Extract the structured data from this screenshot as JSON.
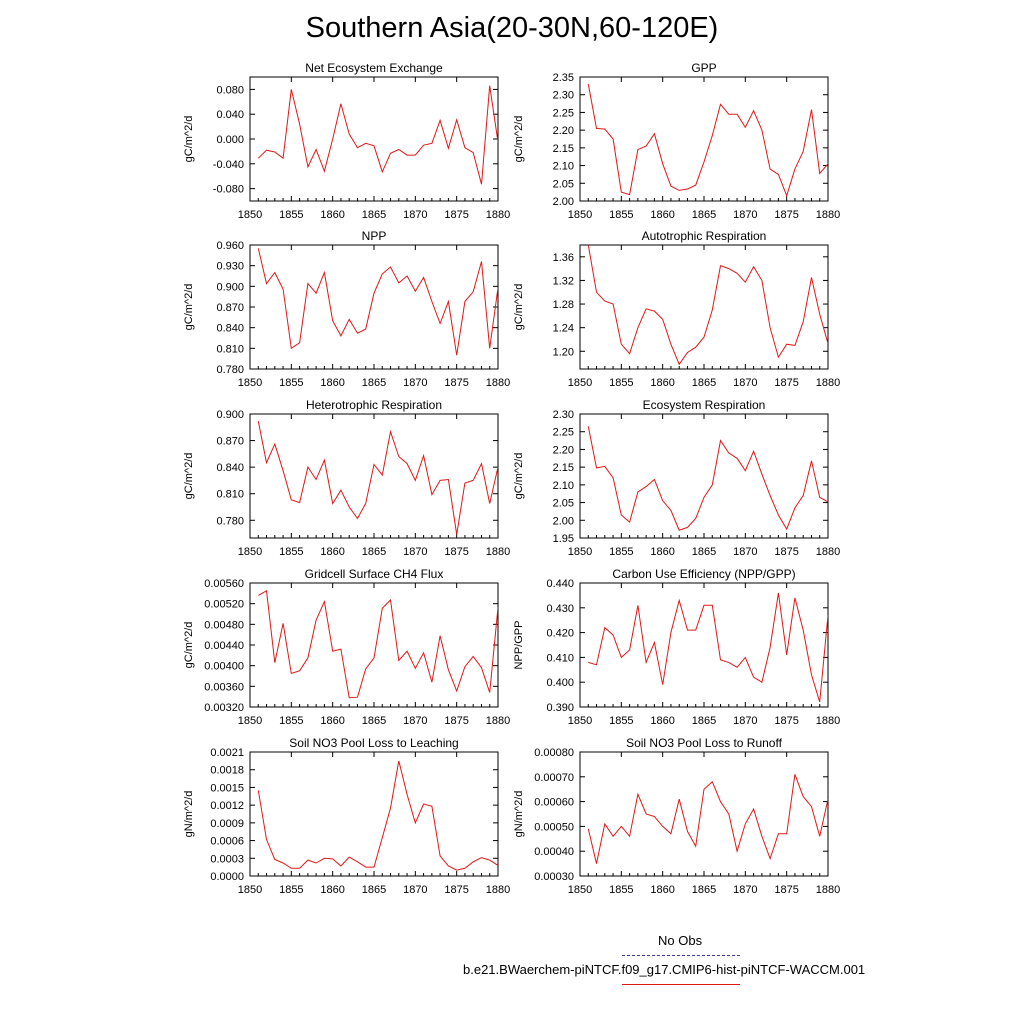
{
  "title": "Southern Asia(20-30N,60-120E)",
  "legend": {
    "obs_label": "No Obs",
    "model_label": "b.e21.BWaerchem-piNTCF.f09_g17.CMIP6-hist-piNTCF-WACCM.001",
    "obs_color": "#3a3aa8",
    "model_color": "#e01818"
  },
  "chart_data": [
    {
      "type": "line",
      "title": "Net Ecosystem Exchange",
      "ylabel": "gC/m^2/d",
      "xlim": [
        1850,
        1880
      ],
      "xticks": [
        "1850",
        "1855",
        "1860",
        "1865",
        "1870",
        "1875",
        "1880"
      ],
      "ylim": [
        -0.1,
        0.1
      ],
      "yticks": [
        "-0.080",
        "-0.040",
        "0.000",
        "0.040",
        "0.080"
      ],
      "ytick_values": [
        -0.08,
        -0.04,
        0.0,
        0.04,
        0.08
      ],
      "x": [
        1851,
        1852,
        1853,
        1854,
        1855,
        1856,
        1857,
        1858,
        1859,
        1860,
        1861,
        1862,
        1863,
        1864,
        1865,
        1866,
        1867,
        1868,
        1869,
        1870,
        1871,
        1872,
        1873,
        1874,
        1875,
        1876,
        1877,
        1878,
        1879,
        1880
      ],
      "series": [
        {
          "values": [
            -0.031,
            -0.018,
            -0.021,
            -0.031,
            0.08,
            0.024,
            -0.045,
            -0.017,
            -0.052,
            0.0,
            0.057,
            0.008,
            -0.014,
            -0.007,
            -0.011,
            -0.053,
            -0.023,
            -0.017,
            -0.026,
            -0.026,
            -0.01,
            -0.007,
            0.03,
            -0.015,
            0.031,
            -0.014,
            -0.022,
            -0.073,
            0.086,
            -0.005
          ],
          "color": "#e01818"
        }
      ]
    },
    {
      "type": "line",
      "title": "GPP",
      "ylabel": "gC/m^2/d",
      "xlim": [
        1850,
        1880
      ],
      "xticks": [
        "1850",
        "1855",
        "1860",
        "1865",
        "1870",
        "1875",
        "1880"
      ],
      "ylim": [
        2.0,
        2.35
      ],
      "yticks": [
        "2.00",
        "2.05",
        "2.10",
        "2.15",
        "2.20",
        "2.25",
        "2.30",
        "2.35"
      ],
      "ytick_values": [
        2.0,
        2.05,
        2.1,
        2.15,
        2.2,
        2.25,
        2.3,
        2.35
      ],
      "x": [
        1851,
        1852,
        1853,
        1854,
        1855,
        1856,
        1857,
        1858,
        1859,
        1860,
        1861,
        1862,
        1863,
        1864,
        1865,
        1866,
        1867,
        1868,
        1869,
        1870,
        1871,
        1872,
        1873,
        1874,
        1875,
        1876,
        1877,
        1878,
        1879,
        1880
      ],
      "series": [
        {
          "values": [
            2.33,
            2.205,
            2.203,
            2.175,
            2.025,
            2.018,
            2.145,
            2.155,
            2.19,
            2.105,
            2.042,
            2.03,
            2.034,
            2.045,
            2.11,
            2.185,
            2.273,
            2.245,
            2.245,
            2.208,
            2.255,
            2.2,
            2.09,
            2.075,
            2.015,
            2.09,
            2.14,
            2.258,
            2.078,
            2.105
          ],
          "color": "#e01818"
        }
      ]
    },
    {
      "type": "line",
      "title": "NPP",
      "ylabel": "gC/m^2/d",
      "xlim": [
        1850,
        1880
      ],
      "xticks": [
        "1850",
        "1855",
        "1860",
        "1865",
        "1870",
        "1875",
        "1880"
      ],
      "ylim": [
        0.78,
        0.96
      ],
      "yticks": [
        "0.780",
        "0.810",
        "0.840",
        "0.870",
        "0.900",
        "0.930",
        "0.960"
      ],
      "ytick_values": [
        0.78,
        0.81,
        0.84,
        0.87,
        0.9,
        0.93,
        0.96
      ],
      "x": [
        1851,
        1852,
        1853,
        1854,
        1855,
        1856,
        1857,
        1858,
        1859,
        1860,
        1861,
        1862,
        1863,
        1864,
        1865,
        1866,
        1867,
        1868,
        1869,
        1870,
        1871,
        1872,
        1873,
        1874,
        1875,
        1876,
        1877,
        1878,
        1879,
        1880
      ],
      "series": [
        {
          "values": [
            0.955,
            0.904,
            0.92,
            0.896,
            0.81,
            0.818,
            0.904,
            0.89,
            0.92,
            0.85,
            0.828,
            0.852,
            0.832,
            0.838,
            0.89,
            0.918,
            0.928,
            0.905,
            0.915,
            0.893,
            0.913,
            0.878,
            0.846,
            0.878,
            0.8,
            0.878,
            0.892,
            0.936,
            0.81,
            0.898
          ],
          "color": "#e01818"
        }
      ]
    },
    {
      "type": "line",
      "title": "Autotrophic Respiration",
      "ylabel": "gC/m^2/d",
      "xlim": [
        1850,
        1880
      ],
      "xticks": [
        "1850",
        "1855",
        "1860",
        "1865",
        "1870",
        "1875",
        "1880"
      ],
      "ylim": [
        1.17,
        1.38
      ],
      "yticks": [
        "1.20",
        "1.24",
        "1.28",
        "1.32",
        "1.36"
      ],
      "ytick_values": [
        1.2,
        1.24,
        1.28,
        1.32,
        1.36
      ],
      "x": [
        1851,
        1852,
        1853,
        1854,
        1855,
        1856,
        1857,
        1858,
        1859,
        1860,
        1861,
        1862,
        1863,
        1864,
        1865,
        1866,
        1867,
        1868,
        1869,
        1870,
        1871,
        1872,
        1873,
        1874,
        1875,
        1876,
        1877,
        1878,
        1879,
        1880
      ],
      "series": [
        {
          "values": [
            1.38,
            1.3,
            1.285,
            1.28,
            1.212,
            1.196,
            1.24,
            1.272,
            1.268,
            1.254,
            1.212,
            1.178,
            1.198,
            1.207,
            1.224,
            1.27,
            1.345,
            1.34,
            1.332,
            1.317,
            1.343,
            1.32,
            1.24,
            1.19,
            1.212,
            1.21,
            1.25,
            1.325,
            1.263,
            1.213
          ],
          "color": "#e01818"
        }
      ]
    },
    {
      "type": "line",
      "title": "Heterotrophic Respiration",
      "ylabel": "gC/m^2/d",
      "xlim": [
        1850,
        1880
      ],
      "xticks": [
        "1850",
        "1855",
        "1860",
        "1865",
        "1870",
        "1875",
        "1880"
      ],
      "ylim": [
        0.76,
        0.9
      ],
      "yticks": [
        "0.780",
        "0.810",
        "0.840",
        "0.870",
        "0.900"
      ],
      "ytick_values": [
        0.78,
        0.81,
        0.84,
        0.87,
        0.9
      ],
      "x": [
        1851,
        1852,
        1853,
        1854,
        1855,
        1856,
        1857,
        1858,
        1859,
        1860,
        1861,
        1862,
        1863,
        1864,
        1865,
        1866,
        1867,
        1868,
        1869,
        1870,
        1871,
        1872,
        1873,
        1874,
        1875,
        1876,
        1877,
        1878,
        1879,
        1880
      ],
      "series": [
        {
          "values": [
            0.892,
            0.845,
            0.866,
            0.836,
            0.803,
            0.8,
            0.84,
            0.826,
            0.848,
            0.799,
            0.814,
            0.795,
            0.782,
            0.799,
            0.843,
            0.831,
            0.88,
            0.852,
            0.844,
            0.825,
            0.853,
            0.809,
            0.825,
            0.826,
            0.764,
            0.822,
            0.825,
            0.844,
            0.799,
            0.84
          ],
          "color": "#e01818"
        }
      ]
    },
    {
      "type": "line",
      "title": "Ecosystem Respiration",
      "ylabel": "gC/m^2/d",
      "xlim": [
        1850,
        1880
      ],
      "xticks": [
        "1850",
        "1855",
        "1860",
        "1865",
        "1870",
        "1875",
        "1880"
      ],
      "ylim": [
        1.95,
        2.3
      ],
      "yticks": [
        "1.95",
        "2.00",
        "2.05",
        "2.10",
        "2.15",
        "2.20",
        "2.25",
        "2.30"
      ],
      "ytick_values": [
        1.95,
        2.0,
        2.05,
        2.1,
        2.15,
        2.2,
        2.25,
        2.3
      ],
      "x": [
        1851,
        1852,
        1853,
        1854,
        1855,
        1856,
        1857,
        1858,
        1859,
        1860,
        1861,
        1862,
        1863,
        1864,
        1865,
        1866,
        1867,
        1868,
        1869,
        1870,
        1871,
        1872,
        1873,
        1874,
        1875,
        1876,
        1877,
        1878,
        1879,
        1880
      ],
      "series": [
        {
          "values": [
            2.265,
            2.148,
            2.152,
            2.12,
            2.015,
            1.995,
            2.08,
            2.095,
            2.115,
            2.055,
            2.028,
            1.972,
            1.98,
            2.005,
            2.065,
            2.1,
            2.225,
            2.19,
            2.175,
            2.14,
            2.195,
            2.13,
            2.07,
            2.015,
            1.975,
            2.035,
            2.07,
            2.168,
            2.065,
            2.052
          ],
          "color": "#e01818"
        }
      ]
    },
    {
      "type": "line",
      "title": "Gridcell Surface CH4 Flux",
      "ylabel": "gC/m^2/d",
      "xlim": [
        1850,
        1880
      ],
      "xticks": [
        "1850",
        "1855",
        "1860",
        "1865",
        "1870",
        "1875",
        "1880"
      ],
      "ylim": [
        0.0032,
        0.0056
      ],
      "yticks": [
        "0.00320",
        "0.00360",
        "0.00400",
        "0.00440",
        "0.00480",
        "0.00520",
        "0.00560"
      ],
      "ytick_values": [
        0.0032,
        0.0036,
        0.004,
        0.0044,
        0.0048,
        0.0052,
        0.0056
      ],
      "x": [
        1851,
        1852,
        1853,
        1854,
        1855,
        1856,
        1857,
        1858,
        1859,
        1860,
        1861,
        1862,
        1863,
        1864,
        1865,
        1866,
        1867,
        1868,
        1869,
        1870,
        1871,
        1872,
        1873,
        1874,
        1875,
        1876,
        1877,
        1878,
        1879,
        1880
      ],
      "series": [
        {
          "values": [
            0.00536,
            0.00545,
            0.00406,
            0.00482,
            0.00385,
            0.0039,
            0.00415,
            0.00488,
            0.00524,
            0.00428,
            0.00432,
            0.00338,
            0.00339,
            0.00394,
            0.00415,
            0.00511,
            0.00527,
            0.0041,
            0.00428,
            0.00395,
            0.00425,
            0.00368,
            0.00458,
            0.00392,
            0.00351,
            0.00398,
            0.00418,
            0.00396,
            0.00348,
            0.00513
          ],
          "color": "#e01818"
        }
      ]
    },
    {
      "type": "line",
      "title": "Carbon Use Efficiency (NPP/GPP)",
      "ylabel": "NPP/GPP",
      "xlim": [
        1850,
        1880
      ],
      "xticks": [
        "1850",
        "1855",
        "1860",
        "1865",
        "1870",
        "1875",
        "1880"
      ],
      "ylim": [
        0.39,
        0.44
      ],
      "yticks": [
        "0.390",
        "0.400",
        "0.410",
        "0.420",
        "0.430",
        "0.440"
      ],
      "ytick_values": [
        0.39,
        0.4,
        0.41,
        0.42,
        0.43,
        0.44
      ],
      "x": [
        1851,
        1852,
        1853,
        1854,
        1855,
        1856,
        1857,
        1858,
        1859,
        1860,
        1861,
        1862,
        1863,
        1864,
        1865,
        1866,
        1867,
        1868,
        1869,
        1870,
        1871,
        1872,
        1873,
        1874,
        1875,
        1876,
        1877,
        1878,
        1879,
        1880
      ],
      "series": [
        {
          "values": [
            0.408,
            0.407,
            0.422,
            0.419,
            0.41,
            0.413,
            0.431,
            0.408,
            0.416,
            0.399,
            0.42,
            0.433,
            0.421,
            0.421,
            0.431,
            0.431,
            0.409,
            0.408,
            0.406,
            0.41,
            0.402,
            0.4,
            0.414,
            0.436,
            0.411,
            0.434,
            0.421,
            0.403,
            0.392,
            0.427
          ],
          "color": "#e01818"
        }
      ]
    },
    {
      "type": "line",
      "title": "Soil NO3 Pool Loss to Leaching",
      "ylabel": "gN/m^2/d",
      "xlim": [
        1850,
        1880
      ],
      "xticks": [
        "1850",
        "1855",
        "1860",
        "1865",
        "1870",
        "1875",
        "1880"
      ],
      "ylim": [
        0.0,
        0.0021
      ],
      "yticks": [
        "0.0000",
        "0.0003",
        "0.0006",
        "0.0009",
        "0.0012",
        "0.0015",
        "0.0018",
        "0.0021"
      ],
      "ytick_values": [
        0.0,
        0.0003,
        0.0006,
        0.0009,
        0.0012,
        0.0015,
        0.0018,
        0.0021
      ],
      "x": [
        1851,
        1852,
        1853,
        1854,
        1855,
        1856,
        1857,
        1858,
        1859,
        1860,
        1861,
        1862,
        1863,
        1864,
        1865,
        1866,
        1867,
        1868,
        1869,
        1870,
        1871,
        1872,
        1873,
        1874,
        1875,
        1876,
        1877,
        1878,
        1879,
        1880
      ],
      "series": [
        {
          "values": [
            0.00145,
            0.00062,
            0.00028,
            0.00022,
            0.00013,
            0.00013,
            0.00027,
            0.00022,
            0.0003,
            0.00029,
            0.00017,
            0.00032,
            0.00024,
            0.00015,
            0.00015,
            0.00065,
            0.00115,
            0.00195,
            0.00138,
            0.0009,
            0.00122,
            0.00118,
            0.00034,
            0.00017,
            0.0001,
            0.00013,
            0.00024,
            0.00031,
            0.00027,
            0.00018
          ],
          "color": "#e01818"
        }
      ]
    },
    {
      "type": "line",
      "title": "Soil NO3 Pool Loss to Runoff",
      "ylabel": "gN/m^2/d",
      "xlim": [
        1850,
        1880
      ],
      "xticks": [
        "1850",
        "1855",
        "1860",
        "1865",
        "1870",
        "1875",
        "1880"
      ],
      "ylim": [
        0.0003,
        0.0008
      ],
      "yticks": [
        "0.00030",
        "0.00040",
        "0.00050",
        "0.00060",
        "0.00070",
        "0.00080"
      ],
      "ytick_values": [
        0.0003,
        0.0004,
        0.0005,
        0.0006,
        0.0007,
        0.0008
      ],
      "x": [
        1851,
        1852,
        1853,
        1854,
        1855,
        1856,
        1857,
        1858,
        1859,
        1860,
        1861,
        1862,
        1863,
        1864,
        1865,
        1866,
        1867,
        1868,
        1869,
        1870,
        1871,
        1872,
        1873,
        1874,
        1875,
        1876,
        1877,
        1878,
        1879,
        1880
      ],
      "series": [
        {
          "values": [
            0.00049,
            0.00035,
            0.00051,
            0.00046,
            0.0005,
            0.00046,
            0.00063,
            0.00055,
            0.00054,
            0.0005,
            0.00047,
            0.00061,
            0.00048,
            0.00042,
            0.00065,
            0.00068,
            0.0006,
            0.00055,
            0.0004,
            0.00051,
            0.00057,
            0.00046,
            0.00037,
            0.00047,
            0.00047,
            0.00071,
            0.00062,
            0.00058,
            0.00046,
            0.00061
          ],
          "color": "#e01818"
        }
      ]
    }
  ]
}
